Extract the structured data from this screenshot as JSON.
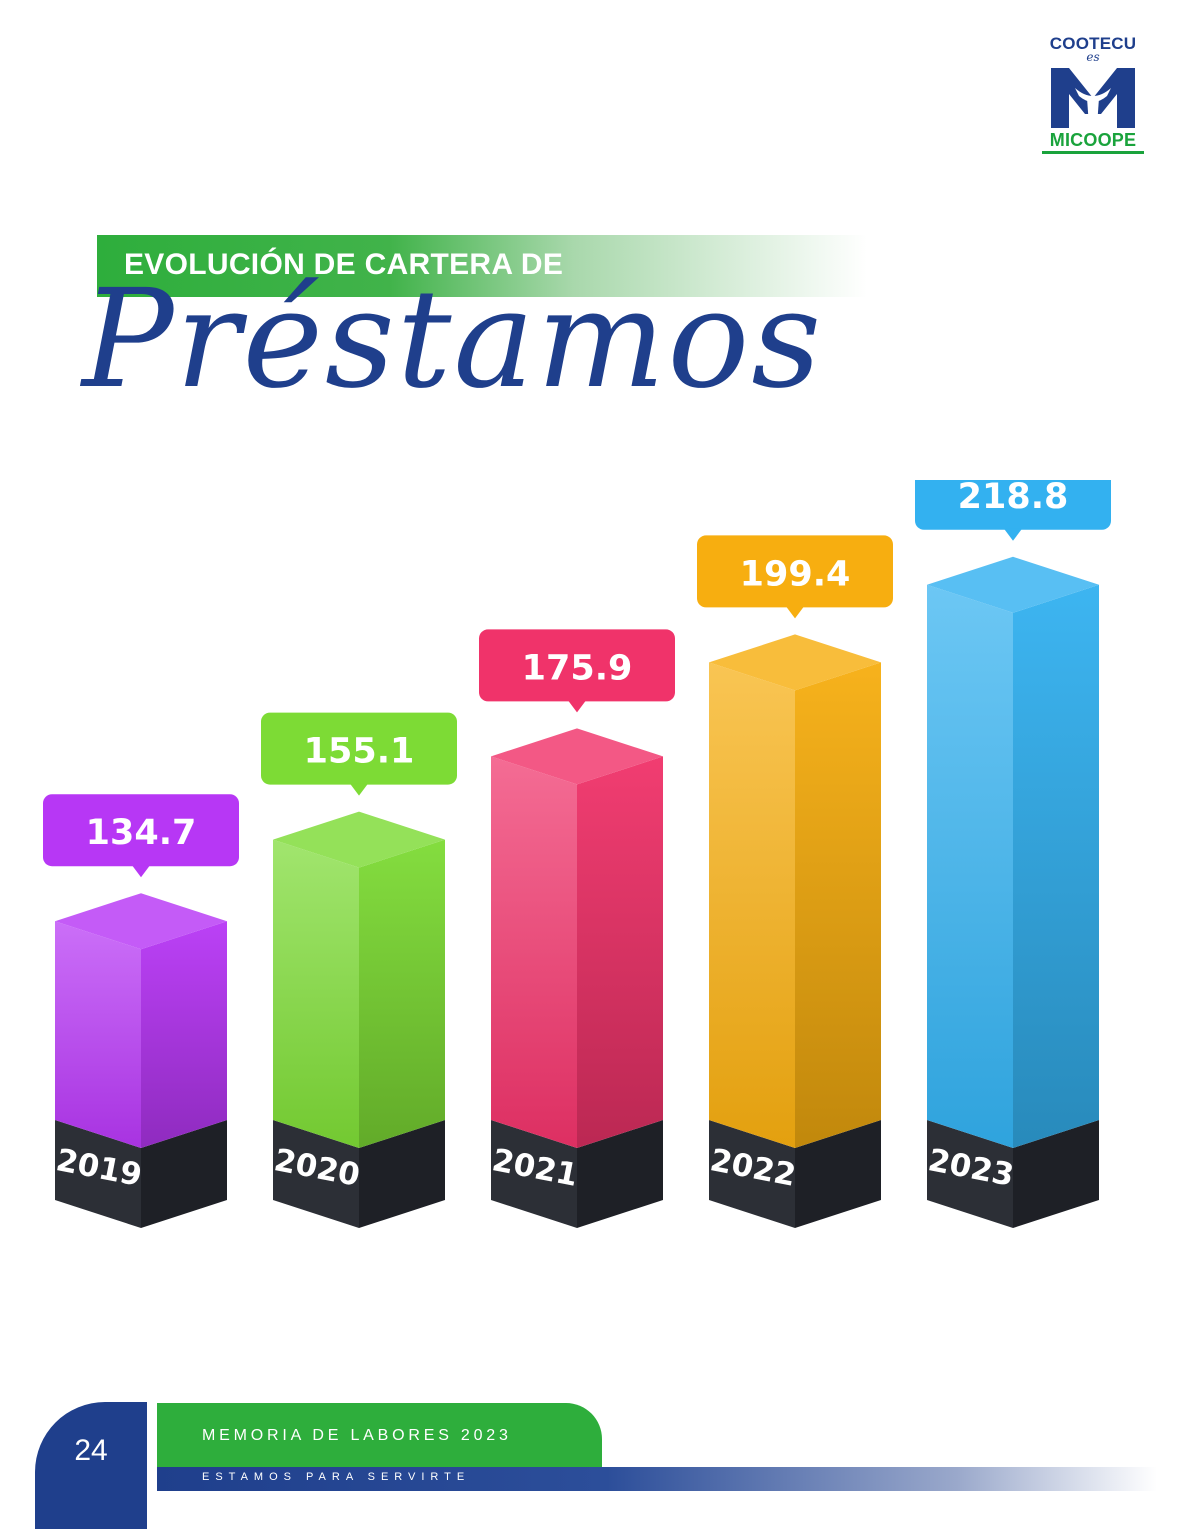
{
  "logo": {
    "top_text": "COOTECU",
    "middle_text": "es",
    "bottom_text": "MICOOPE",
    "colors": {
      "blue": "#1f3f8c",
      "green": "#1aa33c"
    }
  },
  "heading": {
    "line1": "EVOLUCIÓN DE CARTERA DE",
    "line2": "Préstamos"
  },
  "chart_data": {
    "type": "bar",
    "categories": [
      "2019",
      "2020",
      "2021",
      "2022",
      "2023"
    ],
    "values": [
      134.7,
      155.1,
      175.9,
      199.4,
      218.8
    ],
    "value_labels": [
      "134.7",
      "155.1",
      "175.9",
      "199.4",
      "218.8"
    ],
    "colors": [
      "#b737f5",
      "#7ddb35",
      "#f0336a",
      "#f7ae10",
      "#33b1f0"
    ],
    "title": "",
    "xlabel": "",
    "ylabel": "",
    "grid": false,
    "legend": "none",
    "style": "3d-columns-with-callouts"
  },
  "footer": {
    "page_number": "24",
    "title": "MEMORIA DE LABORES 2023",
    "subtitle": "ESTAMOS PARA SERVIRTE"
  }
}
